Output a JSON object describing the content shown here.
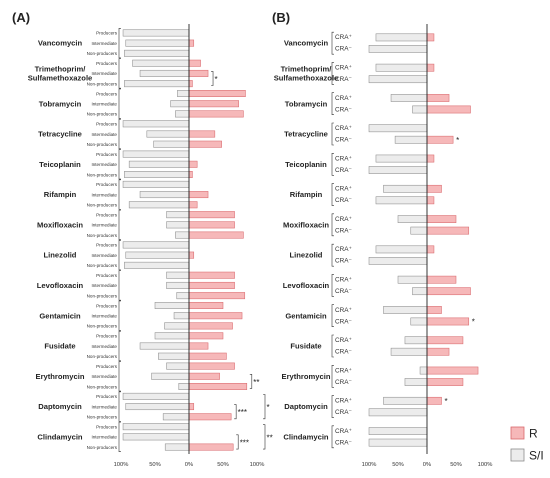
{
  "colors": {
    "R": "#f6b8b9",
    "R_stroke": "#d9696d",
    "SI": "#ececec",
    "SI_stroke": "#8c8c8c"
  },
  "legend": [
    {
      "key": "R",
      "label": "R"
    },
    {
      "key": "SI",
      "label": "S/I"
    }
  ],
  "chart_data": [
    {
      "panel": "(A)",
      "type": "bar",
      "orientation": "horizontal-diverging",
      "xlim": [
        -100,
        100
      ],
      "xticks": [
        "100%",
        "50%",
        "0%",
        "50%",
        "100%"
      ],
      "row_labels": [
        "Producers",
        "Intermediate",
        "Non-producers"
      ],
      "groups": [
        {
          "drug": "Vancomycin",
          "rows": [
            {
              "si": 97,
              "r": 0
            },
            {
              "si": 93,
              "r": 7
            },
            {
              "si": 95,
              "r": 0
            }
          ],
          "sig": []
        },
        {
          "drug": "Trimethoprim/\nSulfamethoxazole",
          "rows": [
            {
              "si": 83,
              "r": 17
            },
            {
              "si": 72,
              "r": 28
            },
            {
              "si": 95,
              "r": 5
            }
          ],
          "sig": [
            {
              "text": "*",
              "from": 1,
              "to": 2
            }
          ]
        },
        {
          "drug": "Tobramycin",
          "rows": [
            {
              "si": 17,
              "r": 83
            },
            {
              "si": 27,
              "r": 73
            },
            {
              "si": 20,
              "r": 80
            }
          ],
          "sig": []
        },
        {
          "drug": "Tetracycline",
          "rows": [
            {
              "si": 97,
              "r": 0
            },
            {
              "si": 62,
              "r": 38
            },
            {
              "si": 52,
              "r": 48
            }
          ],
          "sig": []
        },
        {
          "drug": "Teicoplanin",
          "rows": [
            {
              "si": 97,
              "r": 0
            },
            {
              "si": 88,
              "r": 12
            },
            {
              "si": 95,
              "r": 5
            }
          ],
          "sig": []
        },
        {
          "drug": "Rifampin",
          "rows": [
            {
              "si": 97,
              "r": 0
            },
            {
              "si": 72,
              "r": 28
            },
            {
              "si": 88,
              "r": 12
            }
          ],
          "sig": []
        },
        {
          "drug": "Moxifloxacin",
          "rows": [
            {
              "si": 33,
              "r": 67
            },
            {
              "si": 33,
              "r": 67
            },
            {
              "si": 20,
              "r": 80
            }
          ],
          "sig": []
        },
        {
          "drug": "Linezolid",
          "rows": [
            {
              "si": 97,
              "r": 0
            },
            {
              "si": 93,
              "r": 7
            },
            {
              "si": 95,
              "r": 0
            }
          ],
          "sig": []
        },
        {
          "drug": "Levofloxacin",
          "rows": [
            {
              "si": 33,
              "r": 67
            },
            {
              "si": 33,
              "r": 67
            },
            {
              "si": 18,
              "r": 82
            }
          ],
          "sig": []
        },
        {
          "drug": "Gentamicin",
          "rows": [
            {
              "si": 50,
              "r": 50
            },
            {
              "si": 22,
              "r": 78
            },
            {
              "si": 36,
              "r": 64
            }
          ],
          "sig": []
        },
        {
          "drug": "Fusidate",
          "rows": [
            {
              "si": 50,
              "r": 50
            },
            {
              "si": 72,
              "r": 28
            },
            {
              "si": 45,
              "r": 55
            }
          ],
          "sig": []
        },
        {
          "drug": "Erythromycin",
          "rows": [
            {
              "si": 33,
              "r": 67
            },
            {
              "si": 55,
              "r": 45
            },
            {
              "si": 15,
              "r": 85
            }
          ],
          "sig": [
            {
              "text": "**",
              "from": 1,
              "to": 2
            }
          ]
        },
        {
          "drug": "Daptomycin",
          "rows": [
            {
              "si": 97,
              "r": 0
            },
            {
              "si": 93,
              "r": 7
            },
            {
              "si": 38,
              "r": 62
            }
          ],
          "sig": [
            {
              "text": "***",
              "from": 1,
              "to": 2
            },
            {
              "text": "*",
              "from": 0,
              "to": 2
            }
          ]
        },
        {
          "drug": "Clindamycin",
          "rows": [
            {
              "si": 97,
              "r": 0
            },
            {
              "si": 97,
              "r": 0
            },
            {
              "si": 35,
              "r": 65
            }
          ],
          "sig": [
            {
              "text": "***",
              "from": 1,
              "to": 2
            },
            {
              "text": "**",
              "from": 0,
              "to": 2
            }
          ]
        }
      ]
    },
    {
      "panel": "(B)",
      "type": "bar",
      "orientation": "horizontal-diverging",
      "xlim": [
        -100,
        100
      ],
      "xticks": [
        "100%",
        "50%",
        "0%",
        "50%",
        "100%"
      ],
      "row_labels": [
        "CRA⁺",
        "CRA⁻"
      ],
      "groups": [
        {
          "drug": "Vancomycin",
          "rows": [
            {
              "si": 88,
              "r": 12
            },
            {
              "si": 100,
              "r": 0
            }
          ],
          "sig": []
        },
        {
          "drug": "Trimethoprim/\nSulfamethoxazole",
          "rows": [
            {
              "si": 88,
              "r": 12
            },
            {
              "si": 100,
              "r": 0
            }
          ],
          "sig": []
        },
        {
          "drug": "Tobramycin",
          "rows": [
            {
              "si": 62,
              "r": 38
            },
            {
              "si": 25,
              "r": 75
            }
          ],
          "sig": []
        },
        {
          "drug": "Tetracycline",
          "rows": [
            {
              "si": 100,
              "r": 0
            },
            {
              "si": 55,
              "r": 45
            }
          ],
          "sig": [
            {
              "text": "*",
              "from": 1,
              "to": 1
            }
          ]
        },
        {
          "drug": "Teicoplanin",
          "rows": [
            {
              "si": 88,
              "r": 12
            },
            {
              "si": 100,
              "r": 0
            }
          ],
          "sig": []
        },
        {
          "drug": "Rifampin",
          "rows": [
            {
              "si": 75,
              "r": 25
            },
            {
              "si": 88,
              "r": 12
            }
          ],
          "sig": []
        },
        {
          "drug": "Moxifloxacin",
          "rows": [
            {
              "si": 50,
              "r": 50
            },
            {
              "si": 28,
              "r": 72
            }
          ],
          "sig": []
        },
        {
          "drug": "Linezolid",
          "rows": [
            {
              "si": 88,
              "r": 12
            },
            {
              "si": 100,
              "r": 0
            }
          ],
          "sig": []
        },
        {
          "drug": "Levofloxacin",
          "rows": [
            {
              "si": 50,
              "r": 50
            },
            {
              "si": 25,
              "r": 75
            }
          ],
          "sig": []
        },
        {
          "drug": "Gentamicin",
          "rows": [
            {
              "si": 75,
              "r": 25
            },
            {
              "si": 28,
              "r": 72
            }
          ],
          "sig": [
            {
              "text": "*",
              "from": 1,
              "to": 1
            }
          ]
        },
        {
          "drug": "Fusidate",
          "rows": [
            {
              "si": 38,
              "r": 62
            },
            {
              "si": 62,
              "r": 38
            }
          ],
          "sig": []
        },
        {
          "drug": "Erythromycin",
          "rows": [
            {
              "si": 12,
              "r": 88
            },
            {
              "si": 38,
              "r": 62
            }
          ],
          "sig": []
        },
        {
          "drug": "Daptomycin",
          "rows": [
            {
              "si": 75,
              "r": 25
            },
            {
              "si": 100,
              "r": 0
            }
          ],
          "sig": [
            {
              "text": "*",
              "from": 0,
              "to": 0
            }
          ]
        },
        {
          "drug": "Clindamycin",
          "rows": [
            {
              "si": 100,
              "r": 0
            },
            {
              "si": 100,
              "r": 0
            }
          ],
          "sig": []
        }
      ]
    }
  ]
}
